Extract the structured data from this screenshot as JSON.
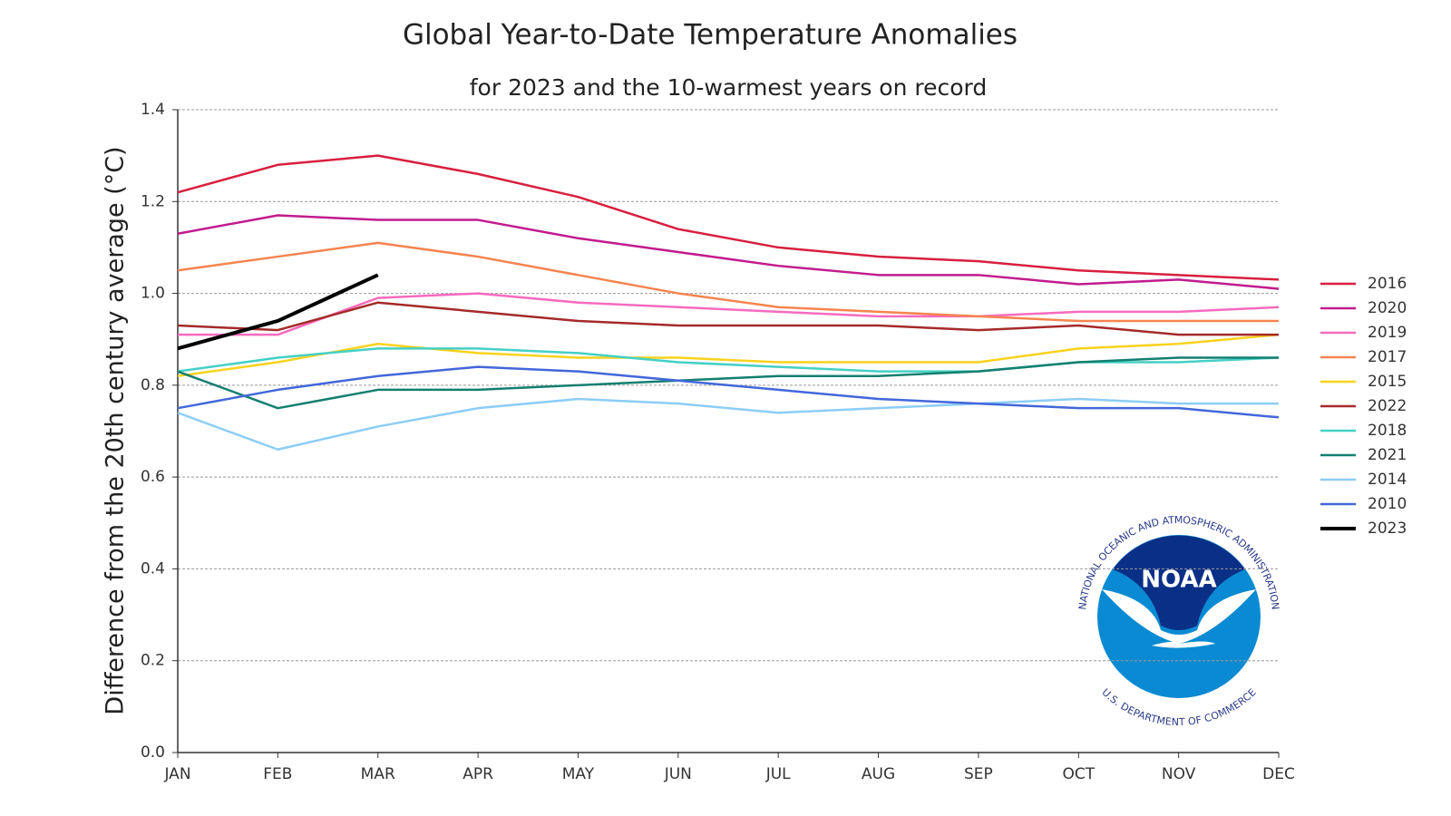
{
  "chart_data": {
    "type": "line",
    "title": "Global Year-to-Date Temperature Anomalies",
    "subtitle": "for 2023 and the 10-warmest years on record",
    "y_label": "Difference from the 20th century average (°C)",
    "categories": [
      "JAN",
      "FEB",
      "MAR",
      "APR",
      "MAY",
      "JUN",
      "JUL",
      "AUG",
      "SEP",
      "OCT",
      "NOV",
      "DEC"
    ],
    "ylim": [
      0,
      1.4
    ],
    "yticks": [
      {
        "value": 0,
        "label": "0.0"
      },
      {
        "value": 0.2,
        "label": "0.2"
      },
      {
        "value": 0.4,
        "label": "0.4"
      },
      {
        "value": 0.6,
        "label": "0.6"
      },
      {
        "value": 0.8,
        "label": "0.8"
      },
      {
        "value": 1,
        "label": "1.0"
      },
      {
        "value": 1.2,
        "label": "1.2"
      },
      {
        "value": 1.4,
        "label": "1.4"
      }
    ],
    "grid": true,
    "legend": "right",
    "series": [
      {
        "name": "2016",
        "color": "#d81f3f",
        "values": [
          1.22,
          1.28,
          1.3,
          1.26,
          1.21,
          1.14,
          1.1,
          1.08,
          1.07,
          1.05,
          1.04,
          1.03
        ]
      },
      {
        "name": "2020",
        "color": "#c21b8e",
        "values": [
          1.13,
          1.17,
          1.16,
          1.16,
          1.12,
          1.09,
          1.06,
          1.04,
          1.04,
          1.02,
          1.03,
          1.01
        ]
      },
      {
        "name": "2019",
        "color": "#f66bbf",
        "values": [
          0.91,
          0.91,
          0.99,
          1.0,
          0.98,
          0.97,
          0.96,
          0.95,
          0.95,
          0.96,
          0.96,
          0.97
        ]
      },
      {
        "name": "2017",
        "color": "#f6844f",
        "values": [
          1.05,
          1.08,
          1.11,
          1.08,
          1.04,
          1.0,
          0.97,
          0.96,
          0.95,
          0.94,
          0.94,
          0.94
        ]
      },
      {
        "name": "2015",
        "color": "#f9d21c",
        "values": [
          0.82,
          0.85,
          0.89,
          0.87,
          0.86,
          0.86,
          0.85,
          0.85,
          0.85,
          0.88,
          0.89,
          0.91
        ]
      },
      {
        "name": "2022",
        "color": "#a52a2a",
        "values": [
          0.93,
          0.92,
          0.98,
          0.96,
          0.94,
          0.93,
          0.93,
          0.93,
          0.92,
          0.93,
          0.91,
          0.91
        ]
      },
      {
        "name": "2018",
        "color": "#45d0c5",
        "values": [
          0.83,
          0.86,
          0.88,
          0.88,
          0.87,
          0.85,
          0.84,
          0.83,
          0.83,
          0.85,
          0.85,
          0.86
        ]
      },
      {
        "name": "2021",
        "color": "#137f70",
        "values": [
          0.83,
          0.75,
          0.79,
          0.79,
          0.8,
          0.81,
          0.82,
          0.82,
          0.83,
          0.85,
          0.86,
          0.86
        ]
      },
      {
        "name": "2014",
        "color": "#8ccdf7",
        "values": [
          0.74,
          0.66,
          0.71,
          0.75,
          0.77,
          0.76,
          0.74,
          0.75,
          0.76,
          0.77,
          0.76,
          0.76
        ]
      },
      {
        "name": "2010",
        "color": "#4267da",
        "values": [
          0.75,
          0.79,
          0.82,
          0.84,
          0.83,
          0.81,
          0.79,
          0.77,
          0.76,
          0.75,
          0.75,
          0.73
        ]
      },
      {
        "name": "2023",
        "color": "#000000",
        "values": [
          0.88,
          0.94,
          1.04,
          null,
          null,
          null,
          null,
          null,
          null,
          null,
          null,
          null
        ]
      }
    ],
    "logo": {
      "name": "NOAA",
      "top_text": "NATIONAL OCEANIC AND ATMOSPHERIC ADMINISTRATION",
      "bottom_text": "U.S. DEPARTMENT OF COMMERCE"
    }
  }
}
